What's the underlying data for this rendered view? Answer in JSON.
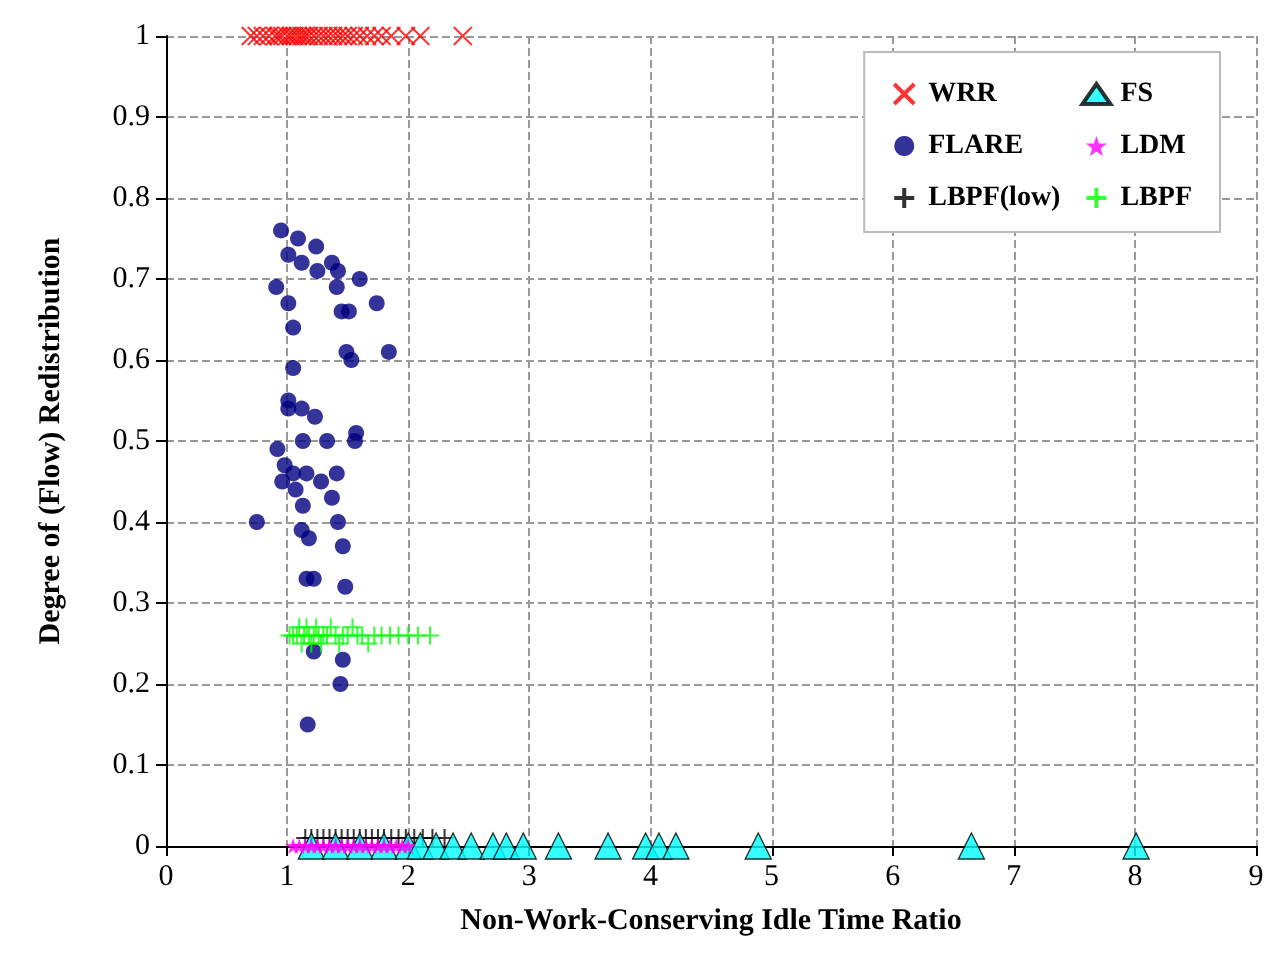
{
  "chart_data": {
    "type": "scatter",
    "xlabel": "Non-Work-Conserving Idle Time Ratio",
    "ylabel": "Degree of (Flow) Redistribution",
    "xlim": [
      0,
      9
    ],
    "xticks": [
      0,
      1,
      2,
      3,
      4,
      5,
      6,
      7,
      8,
      9
    ],
    "ylim": [
      0,
      1
    ],
    "yticks": [
      0,
      0.1,
      0.2,
      0.3,
      0.4,
      0.5,
      0.6,
      0.7,
      0.8,
      0.9,
      1
    ],
    "grid": true,
    "legend": "top right",
    "series": [
      {
        "name": "WRR",
        "color": "#ff0000",
        "marker": "cross",
        "x": [
          0.7,
          0.75,
          0.8,
          0.85,
          0.9,
          0.93,
          0.96,
          1.0,
          1.03,
          1.06,
          1.09,
          1.12,
          1.15,
          1.18,
          1.22,
          1.26,
          1.3,
          1.34,
          1.38,
          1.42,
          1.46,
          1.5,
          1.55,
          1.6,
          1.66,
          1.72,
          1.78,
          1.86,
          1.98,
          2.1,
          2.45
        ],
        "values": [
          1,
          1,
          1,
          1,
          1,
          1,
          1,
          1,
          1,
          1,
          1,
          1,
          1,
          1,
          1,
          1,
          1,
          1,
          1,
          1,
          1,
          1,
          1,
          1,
          1,
          1,
          1,
          1,
          1,
          1,
          1
        ]
      },
      {
        "name": "FLARE",
        "color": "#000080",
        "marker": "circle",
        "x": [
          0.95,
          1.09,
          1.24,
          1.01,
          1.12,
          1.25,
          1.37,
          1.42,
          1.6,
          0.91,
          1.41,
          1.01,
          1.74,
          1.45,
          1.51,
          1.05,
          1.49,
          1.84,
          1.53,
          1.05,
          1.01,
          1.01,
          1.12,
          1.23,
          1.57,
          1.56,
          1.33,
          1.13,
          0.92,
          0.98,
          1.05,
          1.16,
          0.96,
          1.41,
          1.28,
          1.07,
          1.37,
          1.13,
          1.42,
          0.75,
          1.12,
          1.18,
          1.46,
          1.16,
          1.22,
          1.48,
          1.22,
          1.46,
          1.44,
          1.17
        ],
        "values": [
          0.76,
          0.75,
          0.74,
          0.73,
          0.72,
          0.71,
          0.72,
          0.71,
          0.7,
          0.69,
          0.69,
          0.67,
          0.67,
          0.66,
          0.66,
          0.64,
          0.61,
          0.61,
          0.6,
          0.59,
          0.55,
          0.54,
          0.54,
          0.53,
          0.51,
          0.5,
          0.5,
          0.5,
          0.49,
          0.47,
          0.46,
          0.46,
          0.45,
          0.46,
          0.45,
          0.44,
          0.43,
          0.42,
          0.4,
          0.4,
          0.39,
          0.38,
          0.37,
          0.33,
          0.33,
          0.32,
          0.24,
          0.23,
          0.2,
          0.15
        ]
      },
      {
        "name": "LBPF(low)",
        "color": "#000000",
        "marker": "plus",
        "x": [
          1.15,
          1.2,
          1.25,
          1.3,
          1.35,
          1.4,
          1.45,
          1.5,
          1.55,
          1.6,
          1.65,
          1.7,
          1.75,
          1.8,
          1.86,
          1.92,
          1.98,
          2.05,
          2.12,
          2.2,
          2.3
        ],
        "values": [
          0.01,
          0.01,
          0.01,
          0.01,
          0.01,
          0.01,
          0.01,
          0.01,
          0.01,
          0.01,
          0.01,
          0.01,
          0.01,
          0.01,
          0.01,
          0.01,
          0.01,
          0.01,
          0.01,
          0.01,
          0.01
        ]
      },
      {
        "name": "FS",
        "color": "#00ffff",
        "marker": "triangle",
        "x": [
          1.2,
          1.4,
          1.6,
          1.8,
          2.0,
          2.1,
          2.23,
          2.37,
          2.52,
          2.7,
          2.81,
          2.95,
          3.24,
          3.65,
          3.96,
          4.07,
          4.21,
          4.89,
          6.65,
          8.01
        ],
        "values": [
          0,
          0,
          0,
          0,
          0,
          0,
          0,
          0,
          0,
          0,
          0,
          0,
          0,
          0,
          0,
          0,
          0,
          0,
          0,
          0
        ]
      },
      {
        "name": "LDM",
        "color": "#ff00ff",
        "marker": "star",
        "x": [
          1.05,
          1.1,
          1.15,
          1.2,
          1.25,
          1.3,
          1.35,
          1.4,
          1.45,
          1.5,
          1.55,
          1.6,
          1.65,
          1.7,
          1.75,
          1.8,
          1.85,
          1.9,
          1.95,
          2.0
        ],
        "values": [
          0,
          0,
          0,
          0,
          0,
          0,
          0,
          0,
          0,
          0,
          0,
          0,
          0,
          0,
          0,
          0,
          0,
          0,
          0,
          0
        ]
      },
      {
        "name": "LBPF",
        "color": "#00ff00",
        "marker": "plus",
        "x": [
          1.02,
          1.05,
          1.08,
          1.1,
          1.12,
          1.14,
          1.16,
          1.18,
          1.2,
          1.22,
          1.24,
          1.26,
          1.28,
          1.3,
          1.33,
          1.36,
          1.4,
          1.43,
          1.46,
          1.5,
          1.54,
          1.58,
          1.62,
          1.67,
          1.72,
          1.78,
          1.85,
          1.92,
          2.0,
          2.08,
          2.18
        ],
        "values": [
          0.26,
          0.26,
          0.26,
          0.27,
          0.25,
          0.26,
          0.27,
          0.26,
          0.25,
          0.26,
          0.27,
          0.26,
          0.25,
          0.26,
          0.26,
          0.27,
          0.26,
          0.25,
          0.26,
          0.26,
          0.27,
          0.26,
          0.26,
          0.25,
          0.26,
          0.26,
          0.26,
          0.26,
          0.26,
          0.26,
          0.26
        ]
      }
    ]
  }
}
